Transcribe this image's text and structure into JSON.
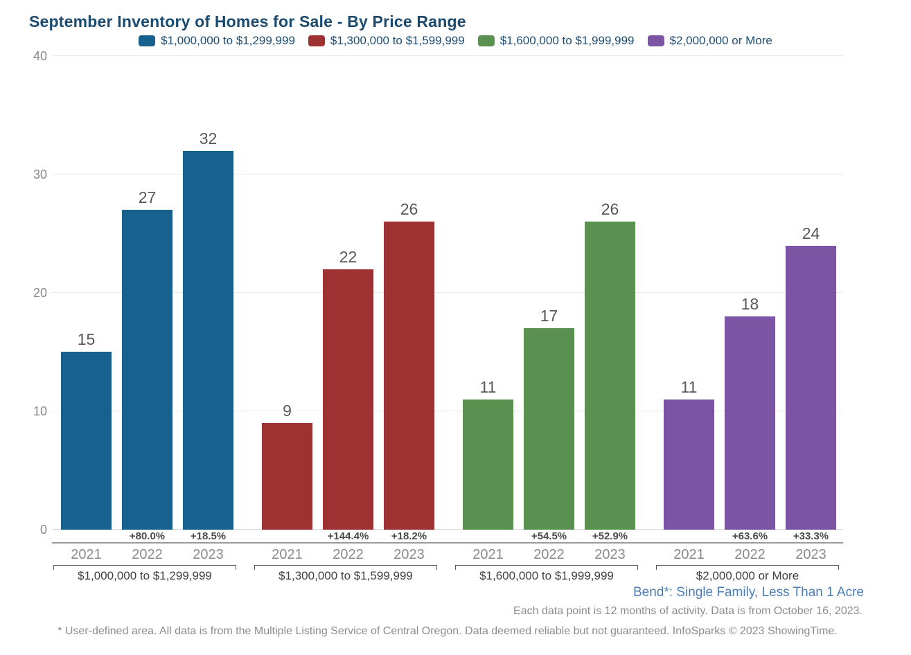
{
  "chart_data": {
    "type": "bar",
    "title": "September Inventory of Homes for Sale - By Price Range",
    "ylim": [
      0,
      40
    ],
    "y_ticks": [
      0,
      10,
      20,
      30,
      40
    ],
    "grid": true,
    "legend_position": "top",
    "years": [
      "2021",
      "2022",
      "2023"
    ],
    "groups": [
      {
        "label": "$1,000,000 to $1,299,999",
        "color": "#17618F",
        "values": [
          15,
          27,
          32
        ],
        "pct_change": [
          "",
          "+80.0%",
          "+18.5%"
        ]
      },
      {
        "label": "$1,300,000 to $1,599,999",
        "color": "#9E3132",
        "values": [
          9,
          22,
          26
        ],
        "pct_change": [
          "",
          "+144.4%",
          "+18.2%"
        ]
      },
      {
        "label": "$1,600,000 to $1,999,999",
        "color": "#5B9150",
        "values": [
          11,
          17,
          26
        ],
        "pct_change": [
          "",
          "+54.5%",
          "+52.9%"
        ]
      },
      {
        "label": "$2,000,000 or More",
        "color": "#7B54A4",
        "values": [
          11,
          18,
          24
        ],
        "pct_change": [
          "",
          "+63.6%",
          "+33.3%"
        ]
      }
    ]
  },
  "notes": {
    "market": "Bend*: Single Family, Less Than 1 Acre",
    "data_point": "Each data point is 12 months of activity. Data is from October 16, 2023.",
    "disclaimer": "* User-defined area. All data is from the Multiple Listing Service of Central Oregon. Data deemed reliable but not guaranteed. InfoSparks © 2023 ShowingTime."
  },
  "colors": {
    "title": "#1A4A70",
    "legend_text": "#1D4D74",
    "axis_text": "#8A8A8A",
    "value_label": "#58585A",
    "pct_label": "#4A4A4A",
    "group_label": "#404040",
    "gridline": "#E9E9E9",
    "baseline": "#DCDCDC",
    "separator": "#9A9A9A",
    "bracket": "#5A5A5A",
    "note_blue": "#4A7EB5",
    "note_gray": "#8C8C8C"
  }
}
